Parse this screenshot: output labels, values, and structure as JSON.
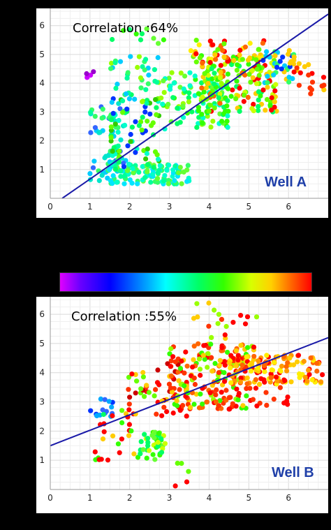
{
  "colorbar": {
    "stops": [
      "#e000ff",
      "#6a00ff",
      "#0000ff",
      "#00aaff",
      "#00ffff",
      "#00ff66",
      "#33ff00",
      "#d8ff00",
      "#ffd000",
      "#ff6600",
      "#ff0000"
    ]
  },
  "chart_data": [
    {
      "type": "scatter",
      "annotation": "Correlation  :64%",
      "label": "Well A",
      "xlim": [
        0,
        7
      ],
      "ylim": [
        0,
        6.6
      ],
      "xticks": [
        "0",
        "1",
        "2",
        "3",
        "4",
        "5",
        "6"
      ],
      "yticks": [
        "1",
        "2",
        "3",
        "4",
        "5",
        "6"
      ],
      "grid": true,
      "fit_line": {
        "x": [
          0.3,
          7.0
        ],
        "y": [
          0,
          6.4
        ],
        "color": "#1a1aa8"
      },
      "clusters": [
        {
          "x": [
            1.0,
            1.9
          ],
          "y": [
            0.6,
            3.3
          ],
          "n": 70,
          "colors": [
            "#00ff99",
            "#33ff66",
            "#00e5cc",
            "#3366ff",
            "#00ccff"
          ],
          "seed": 1
        },
        {
          "x": [
            1.4,
            3.5
          ],
          "y": [
            0.5,
            1.2
          ],
          "n": 110,
          "colors": [
            "#33ff66",
            "#00ffcc",
            "#00e5ff",
            "#66ff33",
            "#00ff99"
          ],
          "seed": 2
        },
        {
          "x": [
            1.5,
            2.8
          ],
          "y": [
            1.0,
            3.6
          ],
          "n": 70,
          "colors": [
            "#00ff66",
            "#33cc00",
            "#00ffcc",
            "#0033ff",
            "#66ff00"
          ],
          "seed": 3
        },
        {
          "x": [
            1.5,
            2.8
          ],
          "y": [
            3.3,
            5.0
          ],
          "n": 40,
          "colors": [
            "#00ff99",
            "#33ff66",
            "#00ccff",
            "#99ff00"
          ],
          "seed": 4
        },
        {
          "x": [
            2.8,
            4.5
          ],
          "y": [
            2.4,
            4.4
          ],
          "n": 110,
          "colors": [
            "#33ff00",
            "#00ff66",
            "#99ff00",
            "#00ffcc",
            "#66ff33"
          ],
          "seed": 5
        },
        {
          "x": [
            3.8,
            5.7
          ],
          "y": [
            3.0,
            5.0
          ],
          "n": 160,
          "colors": [
            "#ffcc00",
            "#66ff00",
            "#00ff66",
            "#ff6600",
            "#33ff00",
            "#ff0000",
            "#ccff00"
          ],
          "seed": 6
        },
        {
          "x": [
            3.5,
            5.5
          ],
          "y": [
            4.7,
            5.5
          ],
          "n": 45,
          "colors": [
            "#ff0000",
            "#ffcc00",
            "#66ff00",
            "#ff6600",
            "#ffee00"
          ],
          "seed": 7
        },
        {
          "x": [
            5.3,
            6.2
          ],
          "y": [
            4.0,
            5.2
          ],
          "n": 35,
          "colors": [
            "#0033ff",
            "#33ff66",
            "#00ccff",
            "#ffcc00"
          ],
          "seed": 8
        },
        {
          "x": [
            6.0,
            6.9
          ],
          "y": [
            3.6,
            4.8
          ],
          "n": 20,
          "colors": [
            "#ff0000",
            "#ff3300",
            "#ffcc00"
          ],
          "seed": 9
        },
        {
          "x": [
            0.9,
            1.3
          ],
          "y": [
            4.0,
            4.4
          ],
          "n": 4,
          "colors": [
            "#9900cc",
            "#cc00ff"
          ],
          "seed": 10
        },
        {
          "x": [
            1.5,
            3.0
          ],
          "y": [
            5.3,
            6.0
          ],
          "n": 10,
          "colors": [
            "#33ff00",
            "#00ff66",
            "#66ff33"
          ],
          "seed": 11
        }
      ]
    },
    {
      "type": "scatter",
      "annotation": "Correlation  :55%",
      "label": "Well B",
      "xlim": [
        0,
        7
      ],
      "ylim": [
        0,
        6.6
      ],
      "xticks": [
        "0",
        "1",
        "2",
        "3",
        "4",
        "5",
        "6"
      ],
      "yticks": [
        "1",
        "2",
        "3",
        "4",
        "5",
        "6"
      ],
      "grid": true,
      "fit_line": {
        "x": [
          0.0,
          7.0
        ],
        "y": [
          1.5,
          5.2
        ],
        "color": "#1a1aa8"
      },
      "clusters": [
        {
          "x": [
            1.0,
            1.6
          ],
          "y": [
            2.4,
            3.1
          ],
          "n": 15,
          "colors": [
            "#0033ff",
            "#3366ff",
            "#00aaff"
          ],
          "seed": 21
        },
        {
          "x": [
            1.1,
            2.2
          ],
          "y": [
            1.0,
            2.6
          ],
          "n": 25,
          "colors": [
            "#ff0000",
            "#33ff00",
            "#00ff66",
            "#ffcc00"
          ],
          "seed": 22
        },
        {
          "x": [
            2.2,
            2.9
          ],
          "y": [
            1.0,
            2.0
          ],
          "n": 40,
          "colors": [
            "#33ff00",
            "#00ff66",
            "#ccff00",
            "#66ff33"
          ],
          "seed": 23
        },
        {
          "x": [
            1.8,
            3.5
          ],
          "y": [
            2.5,
            4.5
          ],
          "n": 60,
          "colors": [
            "#ff0000",
            "#ff3300",
            "#ffcc00",
            "#66ff00",
            "#cc0000"
          ],
          "seed": 24
        },
        {
          "x": [
            3.0,
            5.0
          ],
          "y": [
            2.7,
            5.0
          ],
          "n": 170,
          "colors": [
            "#ff0000",
            "#ff6600",
            "#ffcc00",
            "#99ff00",
            "#33ff00",
            "#ff3300"
          ],
          "seed": 25
        },
        {
          "x": [
            4.5,
            6.9
          ],
          "y": [
            3.6,
            4.6
          ],
          "n": 140,
          "colors": [
            "#ffcc00",
            "#ff6600",
            "#ff0000",
            "#ffee00",
            "#ff9900"
          ],
          "seed": 26
        },
        {
          "x": [
            3.5,
            5.2
          ],
          "y": [
            4.6,
            6.6
          ],
          "n": 22,
          "colors": [
            "#ffcc00",
            "#ff3300",
            "#99ff00",
            "#ff0000"
          ],
          "seed": 27
        },
        {
          "x": [
            4.8,
            6.0
          ],
          "y": [
            2.8,
            3.6
          ],
          "n": 15,
          "colors": [
            "#ff0000",
            "#ff3300"
          ],
          "seed": 28
        },
        {
          "x": [
            3.1,
            3.5
          ],
          "y": [
            0.0,
            1.0
          ],
          "n": 5,
          "colors": [
            "#ff0000",
            "#ffcc00",
            "#66ff00"
          ],
          "seed": 29
        }
      ]
    }
  ]
}
